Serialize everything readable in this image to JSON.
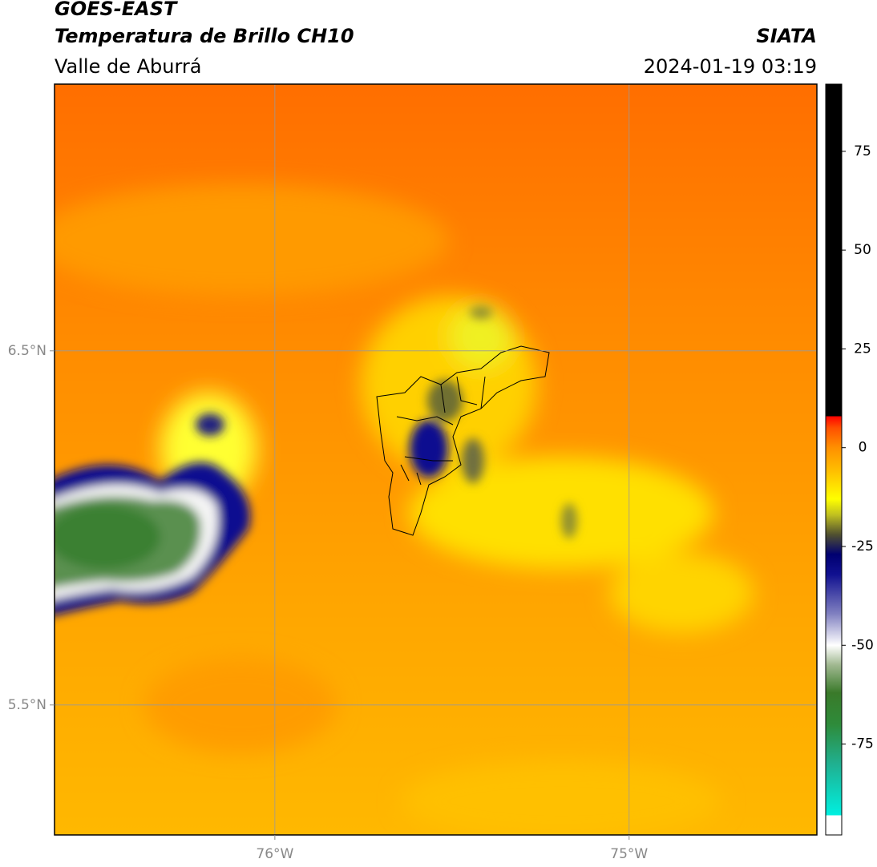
{
  "header": {
    "satellite": "GOES-EAST",
    "product": "Temperatura de Brillo CH10",
    "region": "Valle de Aburrá",
    "source": "SIATA",
    "datetime": "2024-01-19 03:19"
  },
  "map": {
    "lonlim": [
      -76.622,
      -74.47
    ],
    "latlim": [
      5.133,
      7.253
    ],
    "xticks": [
      {
        "value": -76,
        "label": "76°W"
      },
      {
        "value": -75,
        "label": "75°W"
      }
    ],
    "yticks": [
      {
        "value": 6.5,
        "label": "6.5°N"
      },
      {
        "value": 5.5,
        "label": "5.5°N"
      }
    ],
    "grid": true
  },
  "colorbar": {
    "lim": [
      -98,
      92
    ],
    "ticks": [
      -75,
      -50,
      -25,
      0,
      25,
      50,
      75
    ],
    "colormap": [
      {
        "value": -98,
        "color": "#ffffff"
      },
      {
        "value": -93,
        "color": "#ffffff"
      },
      {
        "value": -93,
        "color": "#00f0e0"
      },
      {
        "value": -80,
        "color": "#20b090"
      },
      {
        "value": -70,
        "color": "#2e8b3a"
      },
      {
        "value": -62,
        "color": "#3a7a2a"
      },
      {
        "value": -55,
        "color": "#a0b890"
      },
      {
        "value": -50,
        "color": "#ffffff"
      },
      {
        "value": -42,
        "color": "#8080c0"
      },
      {
        "value": -32,
        "color": "#101090"
      },
      {
        "value": -27,
        "color": "#000070"
      },
      {
        "value": -22,
        "color": "#505030"
      },
      {
        "value": -17,
        "color": "#c0c020"
      },
      {
        "value": -13,
        "color": "#ffff00"
      },
      {
        "value": -6,
        "color": "#ffc000"
      },
      {
        "value": 0,
        "color": "#ff9000"
      },
      {
        "value": 5,
        "color": "#ff5000"
      },
      {
        "value": 8,
        "color": "#ff0000"
      },
      {
        "value": 8,
        "color": "#000000"
      },
      {
        "value": 92,
        "color": "#000000"
      }
    ]
  }
}
